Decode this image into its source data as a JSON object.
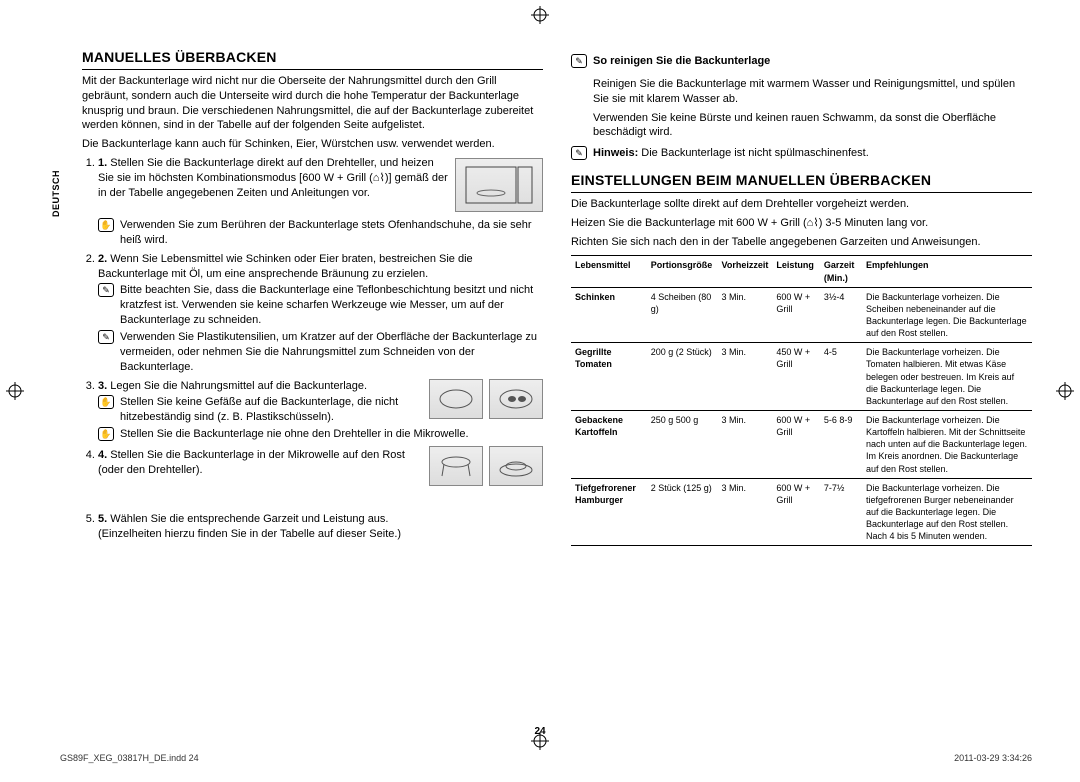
{
  "side_tab": "DEUTSCH",
  "left": {
    "heading": "MANUELLES ÜBERBACKEN",
    "intro": "Mit der Backunterlage wird nicht nur die Oberseite der Nahrungsmittel durch den Grill gebräunt, sondern auch die Unterseite wird durch die hohe Temperatur der Backunterlage knusprig und braun. Die verschiedenen Nahrungsmittel, die auf der Backunterlage zubereitet werden können, sind in der Tabelle auf der folgenden Seite aufgelistet.",
    "intro2": "Die Backunterlage kann auch für Schinken, Eier, Würstchen usw. verwendet werden.",
    "step1": "Stellen Sie die Backunterlage direkt auf den Drehteller, und heizen Sie sie im höchsten Kombinationsmodus [600 W + Grill (⌂⌇)] gemäß der in der Tabelle angegebenen Zeiten und Anleitungen vor.",
    "note1": "Verwenden Sie zum Berühren der Backunterlage stets Ofenhandschuhe, da sie sehr heiß wird.",
    "step2": "Wenn Sie Lebensmittel wie Schinken oder Eier braten, bestreichen Sie die Backunterlage mit Öl, um eine ansprechende Bräunung zu erzielen.",
    "note2": "Bitte beachten Sie, dass die Backunterlage eine Teflonbeschichtung besitzt und nicht kratzfest ist. Verwenden sie keine scharfen Werkzeuge wie Messer, um auf der Backunterlage zu schneiden.",
    "note3": "Verwenden Sie Plastikutensilien, um Kratzer auf der Oberfläche der Backunterlage zu vermeiden, oder nehmen Sie die Nahrungsmittel zum Schneiden von der Backunterlage.",
    "step3": "Legen Sie die Nahrungsmittel auf die Backunterlage.",
    "note4": "Stellen Sie keine Gefäße auf die Backunterlage, die nicht hitzebeständig sind (z. B. Plastikschüsseln).",
    "note5": "Stellen Sie die Backunterlage nie ohne den Drehteller in die Mikrowelle.",
    "step4": "Stellen Sie die Backunterlage in der Mikrowelle auf den Rost (oder den Drehteller).",
    "step5": "Wählen Sie die entsprechende Garzeit und Leistung aus.",
    "step5b": "(Einzelheiten hierzu finden Sie in der Tabelle auf dieser Seite.)"
  },
  "right": {
    "clean_h": "So reinigen Sie die Backunterlage",
    "clean1": "Reinigen Sie die Backunterlage mit warmem Wasser und Reinigungsmittel, und spülen Sie sie mit klarem Wasser ab.",
    "clean2": "Verwenden Sie keine Bürste und keinen rauen Schwamm, da sonst die Oberfläche beschädigt wird.",
    "hinweis_label": "Hinweis:",
    "hinweis": "Die Backunterlage ist nicht spülmaschinenfest.",
    "heading": "EINSTELLUNGEN BEIM MANUELLEN ÜBERBACKEN",
    "p1": "Die Backunterlage sollte direkt auf dem Drehteller vorgeheizt werden.",
    "p2": "Heizen Sie die Backunterlage mit 600 W + Grill (⌂⌇) 3-5 Minuten lang vor.",
    "p3": "Richten Sie sich nach den in der Tabelle angegebenen Garzeiten und Anweisungen.",
    "table": {
      "headers": [
        "Lebensmittel",
        "Portionsgröße",
        "Vorheizzeit",
        "Leistung",
        "Garzeit (Min.)",
        "Empfehlungen"
      ],
      "rows": [
        {
          "food": "Schinken",
          "portion": "4 Scheiben (80 g)",
          "preheat": "3 Min.",
          "power": "600 W + Grill",
          "time": "3½-4",
          "rec": "Die Backunterlage vorheizen. Die Scheiben nebeneinander auf die Backunterlage legen. Die Backunterlage auf den Rost stellen."
        },
        {
          "food": "Gegrillte Tomaten",
          "portion": "200 g (2 Stück)",
          "preheat": "3 Min.",
          "power": "450 W + Grill",
          "time": "4-5",
          "rec": "Die Backunterlage vorheizen. Die Tomaten halbieren. Mit etwas Käse belegen oder bestreuen. Im Kreis auf die Backunterlage legen. Die Backunterlage auf den Rost stellen."
        },
        {
          "food": "Gebackene Kartoffeln",
          "portion": "250 g 500 g",
          "preheat": "3 Min.",
          "power": "600 W + Grill",
          "time": "5-6 8-9",
          "rec": "Die Backunterlage vorheizen. Die Kartoffeln halbieren. Mit der Schnittseite nach unten auf die Backunterlage legen. Im Kreis anordnen. Die Backunterlage auf den Rost stellen."
        },
        {
          "food": "Tiefgefrorener Hamburger",
          "portion": "2 Stück (125 g)",
          "preheat": "3 Min.",
          "power": "600 W + Grill",
          "time": "7-7½",
          "rec": "Die Backunterlage vorheizen. Die tiefgefrorenen Burger nebeneinander auf die Backunterlage legen. Die Backunterlage auf den Rost stellen. Nach 4 bis 5 Minuten wenden."
        }
      ]
    }
  },
  "page_num": "24",
  "footer_left": "GS89F_XEG_03817H_DE.indd   24",
  "footer_right": "2011-03-29   3:34:26"
}
